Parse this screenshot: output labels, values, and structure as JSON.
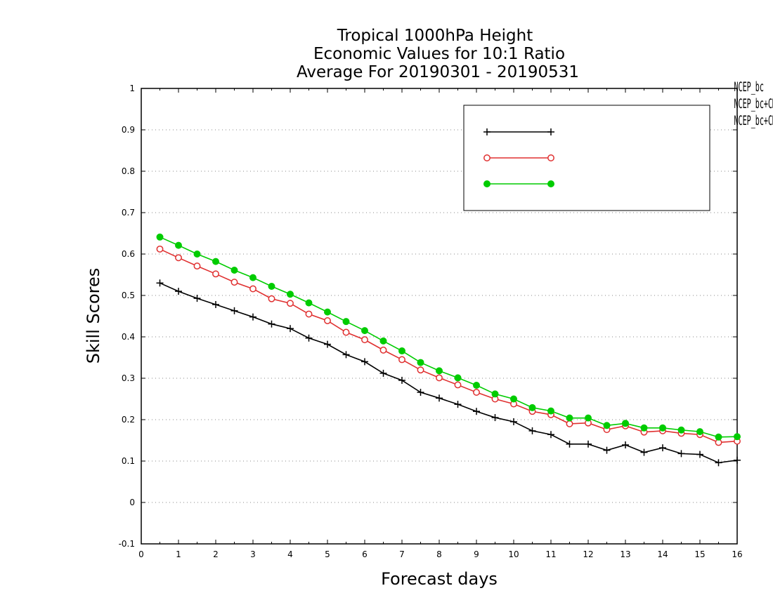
{
  "chart_data": {
    "type": "line",
    "title": [
      "Tropical 1000hPa Height",
      "Economic Values for 10:1 Ratio",
      "Average For 20190301 - 20190531"
    ],
    "xlabel": "Forecast days",
    "ylabel": "Skill Scores",
    "xlim": [
      0,
      16
    ],
    "ylim": [
      -0.1,
      1
    ],
    "xticks": [
      "0",
      "1",
      "2",
      "3",
      "4",
      "5",
      "6",
      "7",
      "8",
      "9",
      "10",
      "11",
      "12",
      "13",
      "14",
      "15",
      "16"
    ],
    "yticks": [
      "-0.1",
      "0",
      "0.1",
      "0.2",
      "0.3",
      "0.4",
      "0.5",
      "0.6",
      "0.7",
      "0.8",
      "0.9",
      "1"
    ],
    "grid": "horizontal dotted",
    "legend_position": "top-right",
    "x": [
      0.5,
      1,
      1.5,
      2,
      2.5,
      3,
      3.5,
      4,
      4.5,
      5,
      5.5,
      6,
      6.5,
      7,
      7.5,
      8,
      8.5,
      9,
      9.5,
      10,
      10.5,
      11,
      11.5,
      12,
      12.5,
      13,
      13.5,
      14,
      14.5,
      15,
      15.5,
      16
    ],
    "series": [
      {
        "name": "NCEP_bc",
        "color": "#000000",
        "marker": "plus",
        "values": [
          0.53,
          0.51,
          0.493,
          0.478,
          0.463,
          0.448,
          0.431,
          0.42,
          0.397,
          0.382,
          0.357,
          0.34,
          0.312,
          0.295,
          0.266,
          0.252,
          0.237,
          0.22,
          0.205,
          0.195,
          0.173,
          0.164,
          0.141,
          0.141,
          0.126,
          0.139,
          0.121,
          0.132,
          0.118,
          0.116,
          0.096,
          0.102
        ]
      },
      {
        "name": "NCEP_bc+CMC_bc",
        "color": "#e03030",
        "marker": "open-circle",
        "values": [
          0.612,
          0.591,
          0.571,
          0.552,
          0.532,
          0.516,
          0.492,
          0.481,
          0.455,
          0.439,
          0.411,
          0.393,
          0.368,
          0.345,
          0.32,
          0.301,
          0.284,
          0.266,
          0.25,
          0.238,
          0.22,
          0.212,
          0.19,
          0.192,
          0.176,
          0.185,
          0.17,
          0.173,
          0.167,
          0.164,
          0.145,
          0.148
        ]
      },
      {
        "name": "NCEP_bc+CMC_bc+FNMOC_bc",
        "color": "#00cc00",
        "marker": "filled-circle",
        "values": [
          0.641,
          0.621,
          0.6,
          0.582,
          0.561,
          0.543,
          0.522,
          0.503,
          0.482,
          0.46,
          0.437,
          0.415,
          0.39,
          0.366,
          0.338,
          0.318,
          0.301,
          0.283,
          0.262,
          0.25,
          0.229,
          0.221,
          0.204,
          0.204,
          0.186,
          0.191,
          0.18,
          0.18,
          0.175,
          0.171,
          0.158,
          0.159
        ]
      }
    ]
  }
}
